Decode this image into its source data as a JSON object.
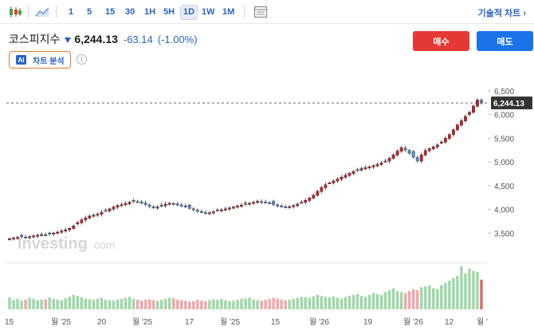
{
  "toolbar": {
    "icons": [
      "candlestick-icon",
      "area-chart-icon",
      "indicators-icon"
    ],
    "timeframes": [
      "1",
      "5",
      "15",
      "30",
      "1H",
      "5H",
      "1D",
      "1W",
      "1M"
    ],
    "active_timeframe": "1D",
    "technical_chart_label": "기술적 차트 ›"
  },
  "quote": {
    "name": "코스피지수",
    "price": "6,244.13",
    "change": "-63.14",
    "change_pct": "(-1.00%)",
    "direction": "down",
    "color_down": "#2a63c4"
  },
  "actions": {
    "buy_label": "매수",
    "sell_label": "매도",
    "buy_color": "#e53935",
    "sell_color": "#1a73e8"
  },
  "ai": {
    "badge": "AI",
    "label": "차트 분석",
    "info_icon": "info-icon"
  },
  "watermark": {
    "brand": "Investing",
    "suffix": ".com"
  },
  "chart_data": {
    "type": "candlestick",
    "y_ticks": [
      "6,500",
      "6,000",
      "5,500",
      "5,000",
      "4,500",
      "4,000",
      "3,500"
    ],
    "y_range": [
      3000,
      6600
    ],
    "last_price_label": "6,244.13",
    "last_price": 6244.13,
    "x_ticks": [
      "15",
      "월 '25",
      "20",
      "월 '25",
      "17",
      "월 '25",
      "15",
      "월 '26",
      "19",
      "월 '26",
      "12",
      "월 '"
    ],
    "up_color": "#c62828",
    "down_color": "#5c8fd6",
    "closes": [
      3380,
      3395,
      3410,
      3420,
      3405,
      3425,
      3440,
      3455,
      3470,
      3460,
      3480,
      3500,
      3520,
      3545,
      3570,
      3600,
      3650,
      3720,
      3780,
      3820,
      3860,
      3880,
      3900,
      3940,
      3970,
      4010,
      4050,
      4080,
      4100,
      4120,
      4150,
      4170,
      4160,
      4140,
      4100,
      4060,
      4030,
      4050,
      4080,
      4110,
      4130,
      4120,
      4100,
      4080,
      4050,
      4020,
      3990,
      3960,
      3940,
      3920,
      3930,
      3950,
      3970,
      3990,
      4010,
      4030,
      4050,
      4070,
      4090,
      4110,
      4130,
      4150,
      4170,
      4160,
      4150,
      4130,
      4100,
      4080,
      4060,
      4050,
      4060,
      4080,
      4110,
      4150,
      4190,
      4240,
      4300,
      4380,
      4460,
      4520,
      4560,
      4600,
      4640,
      4680,
      4720,
      4760,
      4800,
      4830,
      4860,
      4880,
      4900,
      4920,
      4950,
      4980,
      5020,
      5080,
      5150,
      5230,
      5300,
      5250,
      5180,
      5100,
      5020,
      5150,
      5240,
      5280,
      5320,
      5360,
      5420,
      5500,
      5580,
      5680,
      5780,
      5870,
      5960,
      6050,
      6180,
      6307.27,
      6244.13
    ],
    "volumes": [
      0.25,
      0.2,
      0.22,
      0.18,
      0.2,
      0.24,
      0.22,
      0.19,
      0.2,
      0.21,
      0.25,
      0.22,
      0.2,
      0.19,
      0.23,
      0.26,
      0.3,
      0.28,
      0.25,
      0.22,
      0.21,
      0.2,
      0.22,
      0.24,
      0.2,
      0.19,
      0.18,
      0.2,
      0.22,
      0.24,
      0.26,
      0.22,
      0.2,
      0.18,
      0.2,
      0.21,
      0.19,
      0.18,
      0.2,
      0.22,
      0.24,
      0.23,
      0.2,
      0.19,
      0.18,
      0.16,
      0.17,
      0.2,
      0.18,
      0.17,
      0.19,
      0.21,
      0.2,
      0.22,
      0.19,
      0.17,
      0.18,
      0.2,
      0.22,
      0.23,
      0.24,
      0.2,
      0.19,
      0.18,
      0.2,
      0.22,
      0.24,
      0.22,
      0.2,
      0.19,
      0.2,
      0.22,
      0.24,
      0.26,
      0.25,
      0.24,
      0.27,
      0.3,
      0.28,
      0.26,
      0.25,
      0.27,
      0.24,
      0.22,
      0.26,
      0.28,
      0.3,
      0.32,
      0.28,
      0.26,
      0.3,
      0.34,
      0.32,
      0.3,
      0.36,
      0.4,
      0.44,
      0.38,
      0.36,
      0.34,
      0.38,
      0.42,
      0.4,
      0.46,
      0.48,
      0.5,
      0.44,
      0.42,
      0.5,
      0.55,
      0.6,
      0.65,
      0.7,
      0.9,
      0.75,
      0.85,
      0.8,
      0.78,
      0.62
    ]
  }
}
